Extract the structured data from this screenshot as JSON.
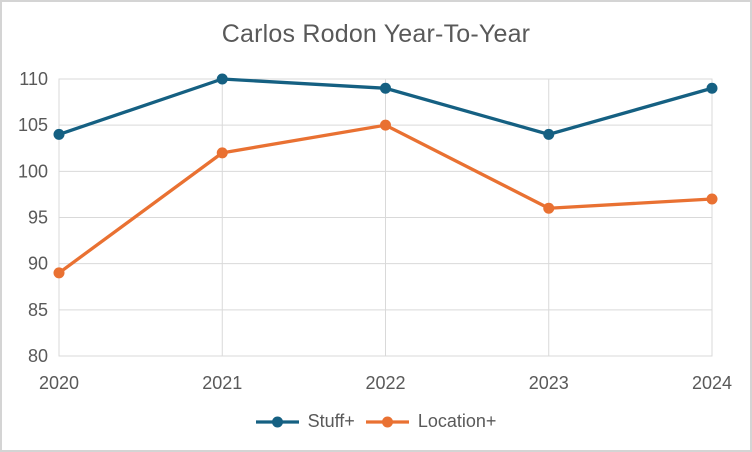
{
  "chart_data": {
    "type": "line",
    "title": "Carlos Rodon Year-To-Year",
    "categories": [
      "2020",
      "2021",
      "2022",
      "2023",
      "2024"
    ],
    "series": [
      {
        "name": "Stuff+",
        "color": "#156082",
        "values": [
          104,
          110,
          109,
          104,
          109
        ]
      },
      {
        "name": "Location+",
        "color": "#E97132",
        "values": [
          89,
          102,
          105,
          96,
          97
        ]
      }
    ],
    "ylim": [
      80,
      110
    ],
    "yticks": [
      80,
      85,
      90,
      95,
      100,
      105,
      110
    ],
    "grid": true,
    "legend_position": "bottom"
  },
  "theme": {
    "text_color": "#595959",
    "gridline_color": "#D9D9D9",
    "frame_border_color": "#D4D4D4",
    "background": "#FFFFFF"
  }
}
